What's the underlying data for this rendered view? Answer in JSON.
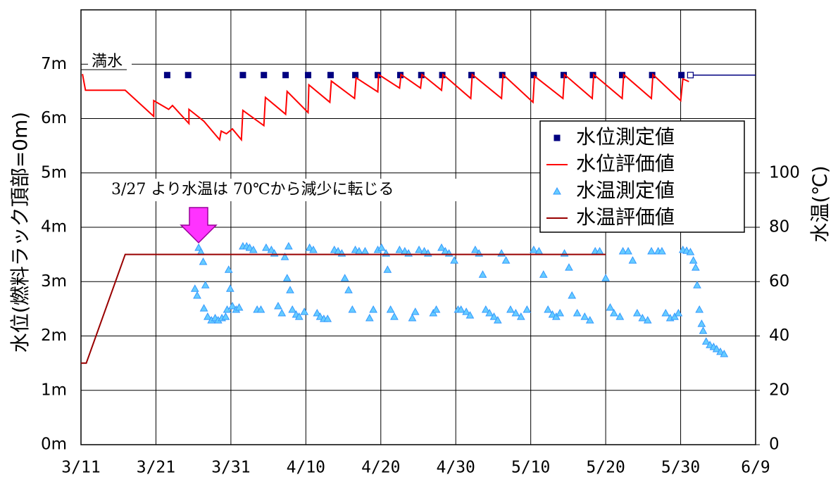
{
  "chart_data": {
    "type": "line",
    "y_label": "水位(燃料ラック頂部=0m)",
    "y2_label": "水温(℃)",
    "annotation": "3/27 より水温は 70℃から減少に転じる",
    "full_water_label": "満水",
    "xlim": [
      70,
      160
    ],
    "xticks": [
      {
        "value": 70,
        "label": "3/11"
      },
      {
        "value": 80,
        "label": "3/21"
      },
      {
        "value": 90,
        "label": "3/31"
      },
      {
        "value": 100,
        "label": "4/10"
      },
      {
        "value": 110,
        "label": "4/20"
      },
      {
        "value": 120,
        "label": "4/30"
      },
      {
        "value": 130,
        "label": "5/10"
      },
      {
        "value": 140,
        "label": "5/20"
      },
      {
        "value": 150,
        "label": "5/30"
      },
      {
        "value": 160,
        "label": "6/9"
      }
    ],
    "ylim": [
      0,
      8
    ],
    "yticks": [
      {
        "value": 0,
        "label": "0m"
      },
      {
        "value": 1,
        "label": "1m"
      },
      {
        "value": 2,
        "label": "2m"
      },
      {
        "value": 3,
        "label": "3m"
      },
      {
        "value": 4,
        "label": "4m"
      },
      {
        "value": 5,
        "label": "5m"
      },
      {
        "value": 6,
        "label": "6m"
      },
      {
        "value": 7,
        "label": "7m"
      }
    ],
    "y2lim": [
      0,
      160
    ],
    "y2ticks": [
      0,
      20,
      40,
      60,
      80,
      100
    ],
    "grid": true,
    "series": [
      {
        "name": "水位測定値",
        "color": "#000080",
        "marker": "square",
        "x": [
          81.5,
          84.3,
          91.6,
          94.4,
          97.3,
          100.3,
          103.3,
          106.6,
          109.6,
          112.6,
          115.4,
          118.2,
          122.1,
          126.2,
          130.4,
          134.4,
          138.3,
          142.2,
          146.2,
          150.1
        ],
        "values": [
          6.8,
          6.8,
          6.8,
          6.8,
          6.8,
          6.8,
          6.8,
          6.8,
          6.8,
          6.8,
          6.8,
          6.8,
          6.8,
          6.8,
          6.8,
          6.8,
          6.8,
          6.8,
          6.8,
          6.8
        ]
      },
      {
        "name": "水位評価値",
        "color": "#ff0000",
        "marker": "line",
        "x": [
          70.2,
          70.6,
          75.9,
          79.7,
          79.7,
          81.7,
          82.2,
          84.4,
          84.4,
          86.4,
          88.5,
          88.7,
          89.4,
          90.2,
          91.4,
          91.6,
          94.4,
          94.6,
          97.3,
          97.5,
          100.3,
          100.4,
          103.2,
          103.4,
          106.5,
          106.7,
          109.6,
          109.7,
          112.5,
          112.7,
          115.3,
          115.5,
          118.1,
          118.3,
          122.0,
          122.2,
          126.1,
          126.3,
          130.3,
          130.5,
          134.3,
          134.5,
          138.2,
          138.4,
          142.2,
          142.4,
          146.1,
          146.3,
          150.0,
          150.3,
          151.1
        ],
        "values": [
          6.82,
          6.52,
          6.52,
          6.04,
          6.33,
          6.17,
          6.24,
          5.91,
          6.17,
          5.95,
          5.61,
          5.77,
          5.72,
          5.81,
          5.61,
          6.15,
          5.87,
          6.39,
          6.08,
          6.5,
          6.11,
          6.62,
          6.3,
          6.69,
          6.37,
          6.75,
          6.49,
          6.81,
          6.56,
          6.81,
          6.56,
          6.81,
          6.52,
          6.81,
          6.37,
          6.81,
          6.37,
          6.81,
          6.3,
          6.78,
          6.37,
          6.81,
          6.37,
          6.81,
          6.37,
          6.81,
          6.37,
          6.81,
          6.33,
          6.73,
          6.68
        ]
      },
      {
        "name": "水温測定値",
        "color": "#3399ff",
        "marker": "triangle",
        "axis": "y2",
        "x": [
          85.7,
          86.0,
          86.3,
          85.2,
          85.5,
          86.6,
          86.4,
          86.9,
          87.4,
          87.9,
          88.3,
          88.8,
          89.3,
          89.5,
          89.7,
          89.9,
          90.2,
          90.7,
          91.1,
          91.6,
          92.1,
          92.5,
          93.0,
          93.5,
          94.0,
          94.7,
          95.4,
          95.8,
          96.3,
          96.8,
          97.2,
          97.7,
          97.5,
          97.9,
          98.2,
          98.7,
          99.1,
          99.8,
          100.5,
          101.0,
          101.5,
          101.9,
          102.4,
          102.9,
          103.8,
          104.3,
          104.8,
          105.2,
          105.7,
          106.2,
          106.6,
          107.1,
          107.9,
          108.5,
          109.0,
          109.6,
          110.1,
          110.7,
          110.9,
          111.3,
          111.8,
          112.5,
          113.2,
          113.7,
          114.2,
          114.6,
          115.1,
          115.8,
          116.3,
          117.0,
          117.4,
          118.1,
          118.6,
          119.1,
          119.8,
          120.3,
          120.7,
          121.4,
          121.9,
          122.6,
          123.1,
          123.6,
          124.0,
          124.5,
          125.1,
          125.6,
          126.1,
          126.7,
          127.3,
          128.0,
          128.7,
          129.5,
          130.4,
          131.1,
          131.7,
          132.3,
          132.9,
          133.4,
          133.9,
          134.5,
          135.1,
          135.5,
          136.2,
          137.2,
          137.9,
          138.6,
          139.2,
          140.0,
          140.6,
          141.1,
          141.9,
          142.3,
          143.0,
          143.6,
          144.2,
          144.9,
          145.6,
          146.1,
          147.0,
          147.5,
          148.0,
          148.6,
          149.2,
          149.7,
          150.3,
          150.8,
          151.3,
          151.7,
          152.0,
          152.2,
          152.5,
          152.8,
          153.0,
          153.4,
          153.9,
          154.4,
          154.8,
          155.3,
          155.8
        ],
        "values": [
          72.5,
          70.9,
          67.3,
          57.4,
          54.9,
          58.7,
          50.2,
          47.1,
          45.8,
          46.6,
          45.8,
          46.6,
          47.1,
          49.7,
          64.4,
          57.4,
          51.0,
          49.7,
          50.5,
          73.0,
          73.0,
          72.5,
          71.7,
          49.7,
          49.7,
          72.5,
          71.7,
          70.4,
          51.0,
          48.4,
          69.1,
          73.0,
          61.3,
          56.9,
          49.7,
          47.9,
          47.1,
          48.9,
          72.5,
          71.7,
          48.4,
          47.1,
          46.3,
          46.3,
          71.7,
          71.2,
          70.4,
          61.3,
          56.9,
          49.7,
          71.7,
          71.2,
          71.2,
          46.6,
          49.7,
          71.7,
          72.5,
          70.4,
          64.4,
          49.7,
          47.1,
          71.7,
          71.2,
          70.4,
          46.6,
          48.9,
          71.7,
          71.2,
          70.4,
          48.4,
          49.7,
          72.5,
          71.2,
          70.4,
          67.8,
          49.7,
          49.7,
          48.9,
          47.6,
          71.7,
          70.4,
          62.6,
          49.7,
          48.4,
          47.1,
          45.8,
          70.4,
          67.8,
          49.7,
          48.4,
          47.1,
          49.7,
          71.7,
          71.2,
          62.6,
          49.7,
          47.9,
          47.1,
          48.4,
          70.4,
          65.2,
          54.9,
          48.4,
          47.1,
          45.8,
          71.2,
          71.2,
          61.3,
          50.5,
          48.4,
          47.1,
          71.2,
          71.2,
          67.8,
          48.4,
          46.6,
          45.8,
          71.2,
          71.2,
          71.2,
          48.4,
          46.6,
          47.1,
          48.4,
          71.7,
          71.4,
          70.9,
          67.8,
          65.2,
          58.7,
          49.7,
          44.5,
          41.9,
          38.0,
          36.7,
          36.0,
          35.2,
          34.2,
          33.4
        ]
      },
      {
        "name": "水温評価値",
        "color": "#990000",
        "marker": "line",
        "axis": "y2",
        "x": [
          70,
          70.7,
          75.9,
          140.0
        ],
        "values": [
          30,
          30,
          70,
          70
        ]
      }
    ],
    "reference_line": {
      "color": "#000080",
      "x": [
        151.3,
        160
      ],
      "values": [
        6.8,
        6.8
      ]
    }
  }
}
